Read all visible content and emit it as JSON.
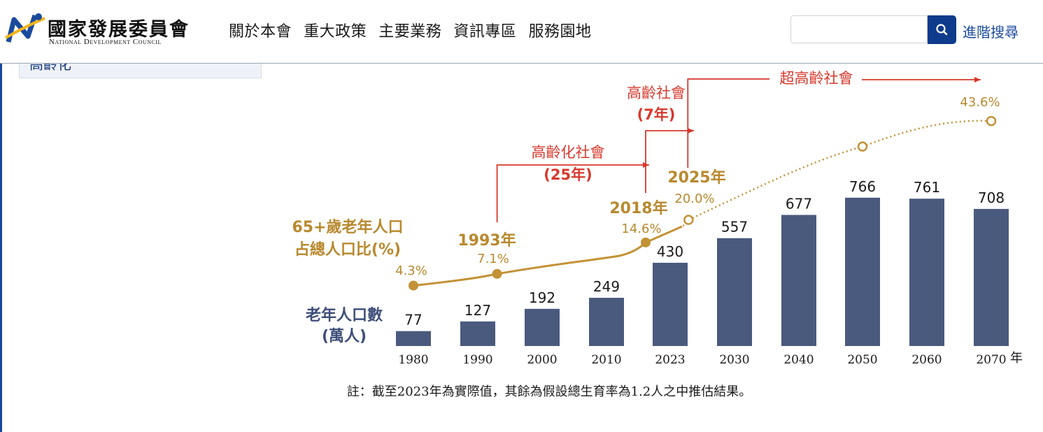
{
  "header": {
    "logo": {
      "name_zh": "國家發展委員會",
      "name_en": "National Development Council",
      "mark_colors": [
        "#1a4a9c",
        "#f2b418"
      ]
    },
    "nav": [
      "關於本會",
      "重大政策",
      "主要業務",
      "資訊專區",
      "服務園地"
    ],
    "search": {
      "value": "",
      "placeholder": "",
      "button_icon": "search-icon"
    },
    "advanced_search": "進階搜尋"
  },
  "sidebar": {
    "item_label": "高齡化"
  },
  "chart_data": {
    "type": "bar",
    "categories": [
      "1980",
      "1990",
      "2000",
      "2010",
      "2023",
      "2030",
      "2040",
      "2050",
      "2060",
      "2070"
    ],
    "x_unit": "年",
    "series": [
      {
        "name": "老年人口數(萬人)",
        "label_lines": [
          "老年人口數",
          "(萬人)"
        ],
        "values": [
          77,
          127,
          192,
          249,
          430,
          557,
          677,
          766,
          761,
          708
        ],
        "color": "#4a5a7e"
      },
      {
        "name": "65+歲老年人口占總人口比(%)",
        "label_lines": [
          "65+歲老年人口",
          "占總人口比(%)"
        ],
        "color": "#c39236",
        "actual_points": [
          {
            "year": 1980,
            "value": 4.3,
            "label": "4.3%"
          },
          {
            "year": 1993,
            "value": 7.1,
            "label": "7.1%",
            "year_label": "1993年"
          },
          {
            "year": 2018,
            "value": 14.6,
            "label": "14.6%",
            "year_label": "2018年"
          }
        ],
        "projected_points": [
          {
            "year": 2025,
            "value": 20.0,
            "label": "20.0%",
            "year_label": "2025年"
          },
          {
            "year": 2050,
            "value": 37.5
          },
          {
            "year": 2070,
            "value": 43.6,
            "label": "43.6%"
          }
        ]
      }
    ],
    "annotations": [
      {
        "lines": [
          "高齡化社會",
          "(25年)"
        ],
        "from_year": 1993,
        "to_year": 2018
      },
      {
        "lines": [
          "高齡社會",
          "(7年)"
        ],
        "from_year": 2018,
        "to_year": 2025
      },
      {
        "lines": [
          "超高齡社會"
        ],
        "from_year": 2025
      }
    ],
    "annotation_color": "#d8382c",
    "note": "註：截至2023年為實際值，其餘為假設總生育率為1.2人之中推估結果。"
  }
}
